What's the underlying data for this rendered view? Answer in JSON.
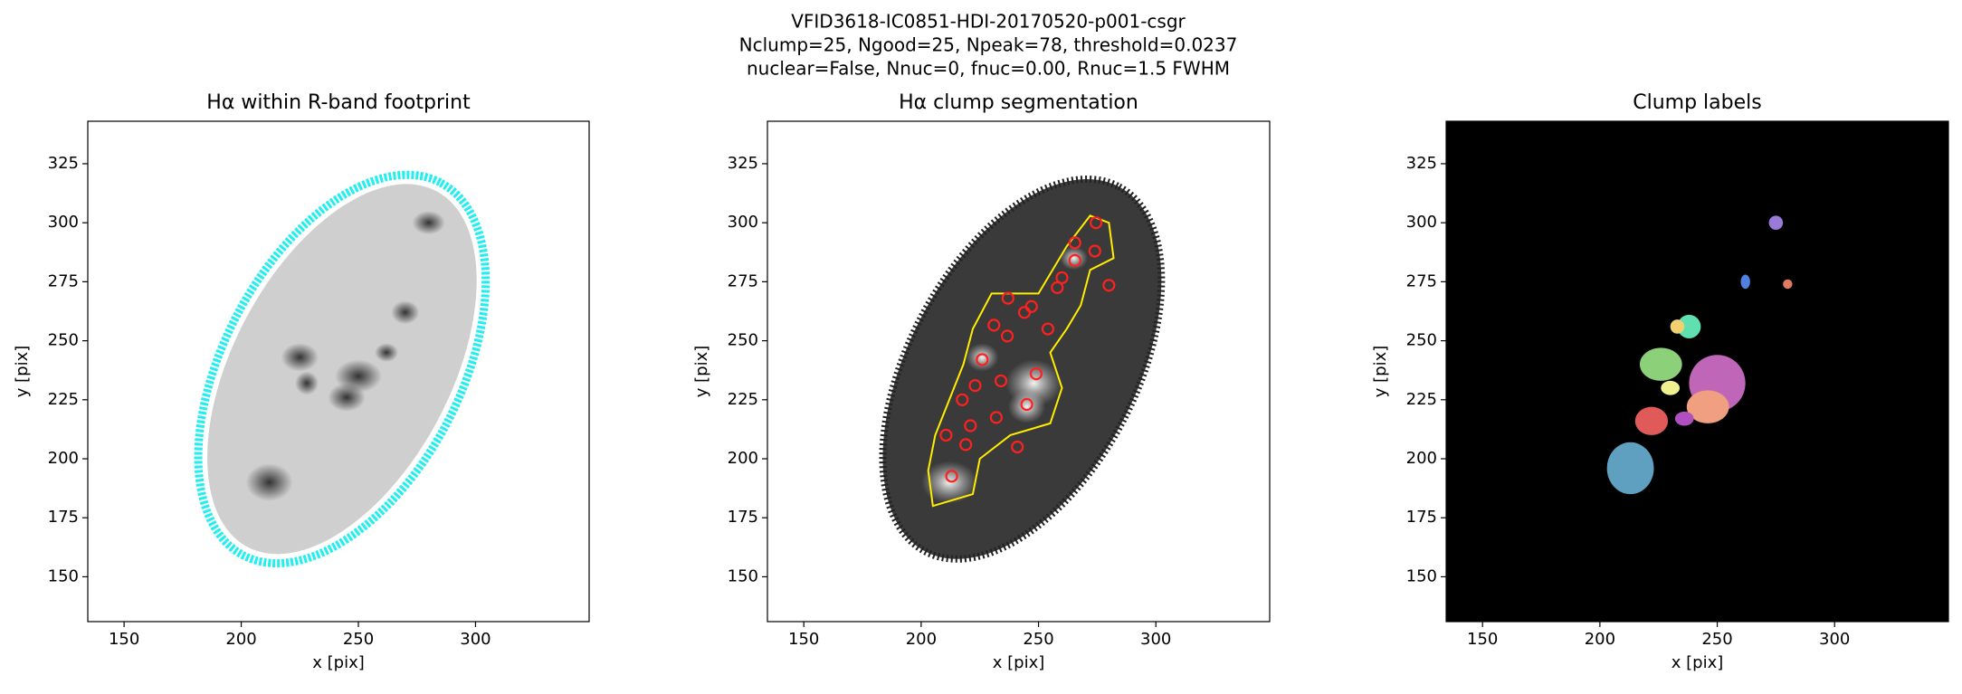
{
  "suptitle": [
    "VFID3618-IC0851-HDI-20170520-p001-csgr",
    "Nclump=25, Ngood=25, Npeak=78, threshold=0.0237",
    "nuclear=False, Nnuc=0, fnuc=0.00, Rnuc=1.5 FWHM"
  ],
  "chart_data": [
    {
      "type": "image",
      "title": "Hα within R-band footprint",
      "xlabel": "x [pix]",
      "ylabel": "y [pix]",
      "xlim": [
        134.5,
        348.5
      ],
      "ylim": [
        131,
        343
      ],
      "xticks": [
        150,
        200,
        250,
        300
      ],
      "yticks": [
        150,
        175,
        200,
        225,
        250,
        275,
        300,
        325
      ]
    },
    {
      "type": "image",
      "title": "Hα clump segmentation",
      "xlabel": "x [pix]",
      "ylabel": "y [pix]",
      "xlim": [
        134.5,
        348.5
      ],
      "ylim": [
        131,
        343
      ],
      "xticks": [
        150,
        200,
        250,
        300
      ],
      "yticks": [
        150,
        175,
        200,
        225,
        250,
        275,
        300,
        325
      ],
      "markers": {
        "color": "#ff2020",
        "x": [
          274.5,
          274,
          280,
          265.5,
          265.5,
          260,
          258,
          254,
          247,
          244,
          237,
          231,
          236.7,
          226,
          234,
          249,
          245,
          217.5,
          221,
          210.6,
          219,
          213,
          241,
          223,
          232
        ],
        "y": [
          300,
          288,
          273.5,
          291.5,
          284,
          276.7,
          272.5,
          255,
          264.5,
          262,
          268,
          256.6,
          252,
          242,
          233,
          236,
          223,
          225,
          214,
          210,
          206,
          192.6,
          205,
          231,
          217.5
        ]
      }
    },
    {
      "type": "image",
      "title": "Clump labels",
      "xlabel": "x [pix]",
      "ylabel": "y [pix]",
      "xlim": [
        134.5,
        348.5
      ],
      "ylim": [
        131,
        343
      ],
      "xticks": [
        150,
        200,
        250,
        300
      ],
      "yticks": [
        150,
        175,
        200,
        225,
        250,
        275,
        300,
        325
      ]
    }
  ]
}
